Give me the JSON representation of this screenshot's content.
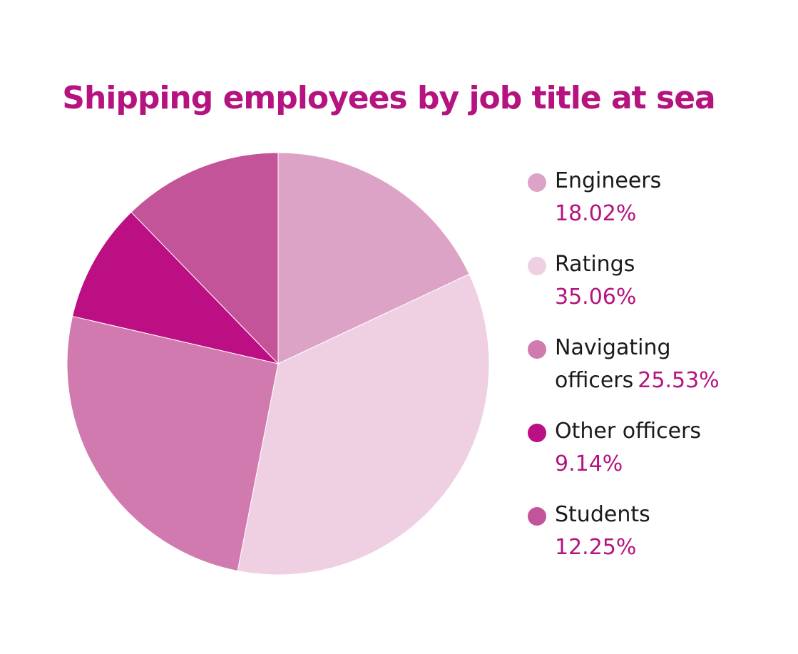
{
  "chart_data": {
    "type": "pie",
    "title": "Shipping employees by job title at sea",
    "categories": [
      "Engineers",
      "Ratings",
      "Navigating officers",
      "Other officers",
      "Students"
    ],
    "values": [
      18.02,
      35.06,
      25.53,
      9.14,
      12.25
    ],
    "colors": [
      "#dda3c6",
      "#efd0e3",
      "#d17aaf",
      "#bc0f83",
      "#c45499"
    ],
    "start_angle": "12 o'clock",
    "direction": "clockwise",
    "legend_position": "right"
  },
  "title": "Shipping employees by job title at sea",
  "legend": [
    {
      "label": "Engineers",
      "value": "18.02%"
    },
    {
      "label": "Ratings",
      "value": "35.06%"
    },
    {
      "label_line1": "Navigating",
      "label_line2": "officers",
      "value": "25.53%"
    },
    {
      "label": "Other officers",
      "value": "9.14%"
    },
    {
      "label": "Students",
      "value": "12.25%"
    }
  ]
}
